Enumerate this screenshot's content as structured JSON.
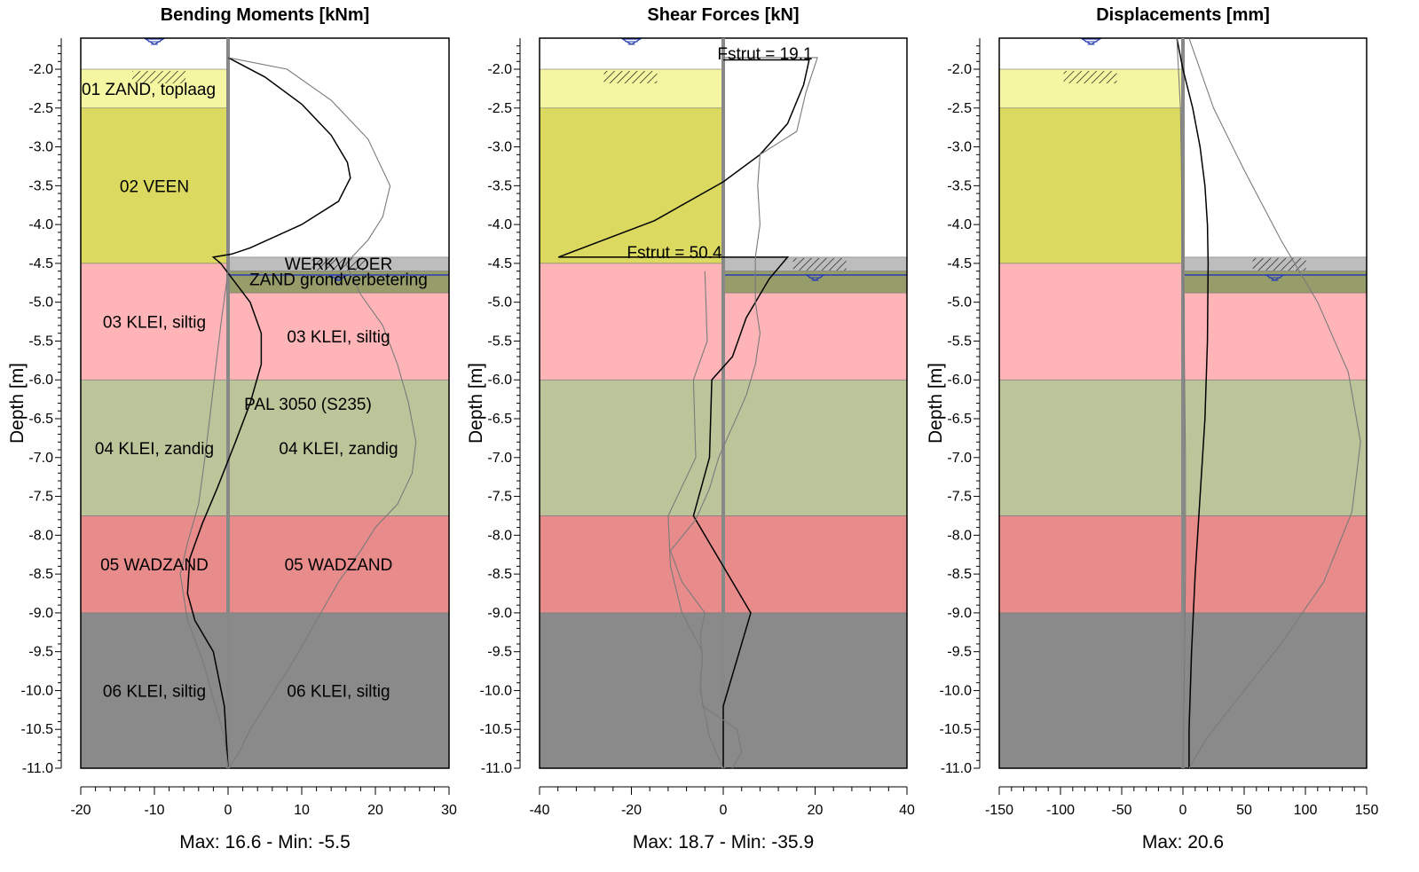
{
  "chart_data": [
    {
      "type": "line",
      "title": "Bending Moments [kNm]",
      "ylabel": "Depth [m]",
      "xlim": [
        -20,
        30
      ],
      "ylim": [
        -11.0,
        -1.6
      ],
      "xticks": [
        "-20",
        "-10",
        "0",
        "10",
        "20",
        "30"
      ],
      "yticks": [
        "-2.0",
        "-2.5",
        "-3.0",
        "-3.5",
        "-4.0",
        "-4.5",
        "-5.0",
        "-5.5",
        "-6.0",
        "-6.5",
        "-7.0",
        "-7.5",
        "-8.0",
        "-8.5",
        "-9.0",
        "-9.5",
        "-10.0",
        "-10.5",
        "-11.0"
      ],
      "footer": "Max: 16.6 - Min: -5.5",
      "wall_label": "PAL 3050 (S235)",
      "left_layers": [
        {
          "name": "01 ZAND, toplaag",
          "top": -2.0,
          "bottom": -2.5,
          "color": "#f4f6a2"
        },
        {
          "name": "02 VEEN",
          "top": -2.5,
          "bottom": -4.5,
          "color": "#dbd95f"
        },
        {
          "name": "03 KLEI, siltig",
          "top": -4.5,
          "bottom": -6.0,
          "color": "#ffb5b7"
        },
        {
          "name": "04 KLEI, zandig",
          "top": -6.0,
          "bottom": -7.75,
          "color": "#bcc59a"
        },
        {
          "name": "05 WADZAND",
          "top": -7.75,
          "bottom": -9.0,
          "color": "#e88b8b"
        },
        {
          "name": "06 KLEI, siltig",
          "top": -9.0,
          "bottom": -11.0,
          "color": "#8a8a8a"
        }
      ],
      "right_layers": [
        {
          "name": "WERKVLOER",
          "top": -4.42,
          "bottom": -4.6,
          "color": "#bdbdbd"
        },
        {
          "name": "ZAND grondverbetering",
          "top": -4.6,
          "bottom": -4.88,
          "color": "#969c6a"
        },
        {
          "name": "03 KLEI, siltig",
          "top": -4.88,
          "bottom": -6.0,
          "color": "#ffb5b7"
        },
        {
          "name": "04 KLEI, zandig",
          "top": -6.0,
          "bottom": -7.75,
          "color": "#bcc59a"
        },
        {
          "name": "05 WADZAND",
          "top": -7.75,
          "bottom": -9.0,
          "color": "#e88b8b"
        },
        {
          "name": "06 KLEI, siltig",
          "top": -9.0,
          "bottom": -11.0,
          "color": "#8a8a8a"
        }
      ],
      "series": [
        {
          "color": "#000000",
          "x": [
            0,
            5,
            10,
            14,
            16.2,
            16.6,
            15,
            10,
            3,
            0.5,
            -2,
            -1,
            1,
            3,
            4.5,
            4.5,
            3,
            1,
            -1.5,
            -3.5,
            -5.2,
            -5.5,
            -4.5,
            -2,
            -0.5,
            0
          ],
          "y": [
            -1.85,
            -2.1,
            -2.45,
            -2.85,
            -3.2,
            -3.4,
            -3.7,
            -4.0,
            -4.3,
            -4.38,
            -4.42,
            -4.5,
            -4.75,
            -5.0,
            -5.4,
            -5.8,
            -6.3,
            -6.8,
            -7.4,
            -7.85,
            -8.3,
            -8.75,
            -9.1,
            -9.5,
            -10.2,
            -11.0
          ]
        },
        {
          "color": "#7a7a7a",
          "x": [
            0,
            8,
            14,
            19,
            22,
            21,
            19,
            16,
            18,
            21,
            23,
            24.5,
            25.5,
            25,
            23,
            20,
            18,
            15,
            12,
            9,
            7,
            5,
            3,
            1.5,
            0
          ],
          "y": [
            -1.85,
            -2.0,
            -2.4,
            -2.9,
            -3.5,
            -3.9,
            -4.2,
            -4.5,
            -4.9,
            -5.3,
            -5.8,
            -6.3,
            -6.8,
            -7.2,
            -7.6,
            -7.9,
            -8.2,
            -8.6,
            -9.1,
            -9.6,
            -9.9,
            -10.2,
            -10.5,
            -10.8,
            -11.0
          ]
        },
        {
          "color": "#7a7a7a",
          "x": [
            0,
            -1,
            -2,
            -3,
            -4,
            -5.5,
            -6.5,
            -5.5,
            -3.5,
            -2,
            -0.5,
            0
          ],
          "y": [
            -4.6,
            -5.3,
            -6.1,
            -6.9,
            -7.6,
            -8.1,
            -8.5,
            -9.1,
            -9.6,
            -10.1,
            -10.6,
            -11.0
          ]
        }
      ]
    },
    {
      "type": "line",
      "title": "Shear Forces [kN]",
      "ylabel": "Depth [m]",
      "xlim": [
        -40,
        40
      ],
      "ylim": [
        -11.0,
        -1.6
      ],
      "xticks": [
        "-40",
        "-20",
        "0",
        "20",
        "40"
      ],
      "yticks": [
        "-2.0",
        "-2.5",
        "-3.0",
        "-3.5",
        "-4.0",
        "-4.5",
        "-5.0",
        "-5.5",
        "-6.0",
        "-6.5",
        "-7.0",
        "-7.5",
        "-8.0",
        "-8.5",
        "-9.0",
        "-9.5",
        "-10.0",
        "-10.5",
        "-11.0"
      ],
      "footer": "Max: 18.7 - Min: -35.9",
      "annotations": [
        "Fstrut = 19.1",
        "Fstrut = 50.4"
      ],
      "series": [
        {
          "color": "#000000",
          "x": [
            0,
            18.7,
            17.5,
            14,
            8,
            0,
            -15,
            -35.9,
            14,
            10,
            5,
            2,
            -2.5,
            -3,
            -6.5,
            0,
            6,
            0,
            0
          ],
          "y": [
            -1.88,
            -1.88,
            -2.2,
            -2.7,
            -3.1,
            -3.45,
            -3.95,
            -4.42,
            -4.42,
            -4.7,
            -5.2,
            -5.7,
            -6.0,
            -7.0,
            -7.75,
            -8.4,
            -9.0,
            -10.2,
            -11.0
          ]
        },
        {
          "color": "#7a7a7a",
          "x": [
            0,
            20.5,
            18,
            16,
            8,
            7.5,
            8,
            7,
            7,
            8,
            7,
            5,
            2,
            -1,
            -3,
            -6,
            -11.5,
            -9,
            -4,
            -5,
            -4.5,
            -5,
            -4.5,
            3,
            4,
            2
          ],
          "y": [
            -1.85,
            -1.85,
            -2.3,
            -2.8,
            -3.1,
            -3.5,
            -4.0,
            -4.42,
            -5.0,
            -5.4,
            -5.8,
            -6.2,
            -6.6,
            -7.0,
            -7.4,
            -7.8,
            -8.2,
            -8.6,
            -9.0,
            -9.3,
            -9.6,
            -9.9,
            -10.2,
            -10.5,
            -10.8,
            -11.0
          ]
        },
        {
          "color": "#7a7a7a",
          "x": [
            -4,
            -3.5,
            -6.5,
            -6,
            -12,
            -11.5,
            -9,
            -4.5,
            -5,
            -3,
            0
          ],
          "y": [
            -4.6,
            -5.5,
            -6.0,
            -7.0,
            -7.75,
            -8.4,
            -9.0,
            -9.5,
            -10.0,
            -10.6,
            -11.0
          ]
        }
      ]
    },
    {
      "type": "line",
      "title": "Displacements [mm]",
      "ylabel": "Depth [m]",
      "xlim": [
        -150,
        150
      ],
      "ylim": [
        -11.0,
        -1.6
      ],
      "xticks": [
        "-150",
        "-100",
        "-50",
        "0",
        "50",
        "100",
        "150"
      ],
      "yticks": [
        "-2.0",
        "-2.5",
        "-3.0",
        "-3.5",
        "-4.0",
        "-4.5",
        "-5.0",
        "-5.5",
        "-6.0",
        "-6.5",
        "-7.0",
        "-7.5",
        "-8.0",
        "-8.5",
        "-9.0",
        "-9.5",
        "-10.0",
        "-10.5",
        "-11.0"
      ],
      "footer": "Max: 20.6",
      "series": [
        {
          "color": "#000000",
          "x": [
            -5,
            0,
            8,
            14,
            18,
            20,
            20.6,
            20,
            18,
            14,
            10,
            7,
            5,
            5
          ],
          "y": [
            -1.6,
            -2.0,
            -2.5,
            -3.0,
            -3.5,
            -4.0,
            -4.5,
            -5.5,
            -6.5,
            -7.5,
            -8.5,
            -9.5,
            -10.5,
            -11.0
          ]
        },
        {
          "color": "#7a7a7a",
          "x": [
            5,
            25,
            50,
            80,
            110,
            135,
            145,
            138,
            115,
            80,
            45,
            20,
            5
          ],
          "y": [
            -1.6,
            -2.5,
            -3.3,
            -4.2,
            -5.0,
            -5.9,
            -6.8,
            -7.7,
            -8.6,
            -9.4,
            -10.1,
            -10.6,
            -11.0
          ]
        },
        {
          "color": "#7a7a7a",
          "x": [
            -5,
            -2,
            -1,
            0,
            1,
            2,
            2,
            1,
            0
          ],
          "y": [
            -1.6,
            -2.5,
            -3.5,
            -4.5,
            -5.5,
            -7.0,
            -8.5,
            -10.0,
            -11.0
          ]
        }
      ]
    }
  ]
}
